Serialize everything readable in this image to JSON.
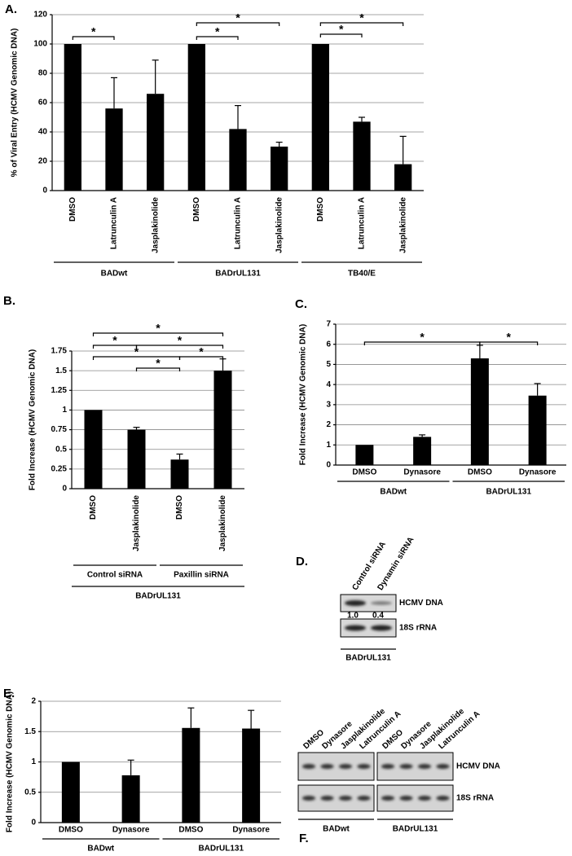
{
  "chart_data": [
    {
      "type": "bar",
      "panel": "A.",
      "y_label": "% of Viral Entry (HCMV Genomic DNA)",
      "categories": [
        "DMSO",
        "Latrunculin A",
        "Jasplakinolide",
        "DMSO",
        "Latrunculin A",
        "Jasplakinolide",
        "DMSO",
        "Latrunculin A",
        "Jasplakinolide"
      ],
      "values": [
        100,
        56,
        66,
        100,
        42,
        30,
        100,
        47,
        18
      ],
      "errors": [
        0,
        21,
        23,
        0,
        16,
        3,
        0,
        3,
        19
      ],
      "groups": [
        "BADwt",
        "BADrUL131",
        "TB40/E"
      ],
      "annotations": [
        "*",
        "*",
        "*",
        "*",
        "*"
      ],
      "ylim": [
        0,
        120
      ],
      "yticks": [
        0,
        20,
        40,
        60,
        80,
        100,
        120
      ],
      "color": "#000000",
      "grid": true
    },
    {
      "type": "bar",
      "panel": "B.",
      "y_label": "Fold Increase (HCMV Genomic DNA)",
      "categories": [
        "DMSO",
        "Jasplakinolide",
        "DMSO",
        "Jasplakinolide"
      ],
      "values": [
        1,
        0.75,
        0.37,
        1.5
      ],
      "errors": [
        0,
        0.03,
        0.07,
        0.15
      ],
      "groups": [
        "Control siRNA",
        "Paxillin siRNA"
      ],
      "super_group": "BADrUL131",
      "annotations": [
        "*",
        "*",
        "*",
        "*",
        "*",
        "*"
      ],
      "ylim": [
        0,
        1.75
      ],
      "yticks": [
        0,
        0.25,
        0.5,
        0.75,
        1,
        1.25,
        1.5,
        1.75
      ],
      "color": "#000000",
      "grid": true
    },
    {
      "type": "bar",
      "panel": "C.",
      "y_label": "Fold Increase (HCMV Genomic DNA)",
      "categories": [
        "DMSO",
        "Dynasore",
        "DMSO",
        "Dynasore"
      ],
      "values": [
        1,
        1.4,
        5.3,
        3.45
      ],
      "errors": [
        0,
        0.1,
        0.65,
        0.6
      ],
      "groups": [
        "BADwt",
        "BADrUL131"
      ],
      "annotations": [
        "*",
        "*"
      ],
      "ylim": [
        0,
        7
      ],
      "yticks": [
        0,
        1,
        2,
        3,
        4,
        5,
        6,
        7
      ],
      "color": "#000000",
      "grid": true
    },
    {
      "type": "bar",
      "panel": "E.",
      "y_label": "Fold Increase (HCMV Genomic DNA)",
      "categories": [
        "DMSO",
        "Dynasore",
        "DMSO",
        "Dynasore"
      ],
      "values": [
        1,
        0.78,
        1.56,
        1.55
      ],
      "errors": [
        0,
        0.25,
        0.33,
        0.3
      ],
      "groups": [
        "BADwt",
        "BADrUL131"
      ],
      "ylim": [
        0,
        2
      ],
      "yticks": [
        0,
        0.5,
        1,
        1.5,
        2
      ],
      "color": "#000000",
      "grid": true
    }
  ],
  "gel_d": {
    "panel": "D.",
    "lanes": [
      "Control siRNA",
      "Dynamin siRNA"
    ],
    "bands": [
      "HCMV DNA",
      "18S rRNA"
    ],
    "quantification": [
      "1.0",
      "0.4"
    ],
    "group": "BADrUL131"
  },
  "gel_f": {
    "panel": "F.",
    "lanes": [
      "DMSO",
      "Dynasore",
      "Jasplakinolide",
      "Latrunculin A",
      "DMSO",
      "Dynasore",
      "Jasplakinolide",
      "Latrunculin A"
    ],
    "bands": [
      "HCMV DNA",
      "18S rRNA"
    ],
    "groups": [
      "BADwt",
      "BADrUL131"
    ]
  }
}
